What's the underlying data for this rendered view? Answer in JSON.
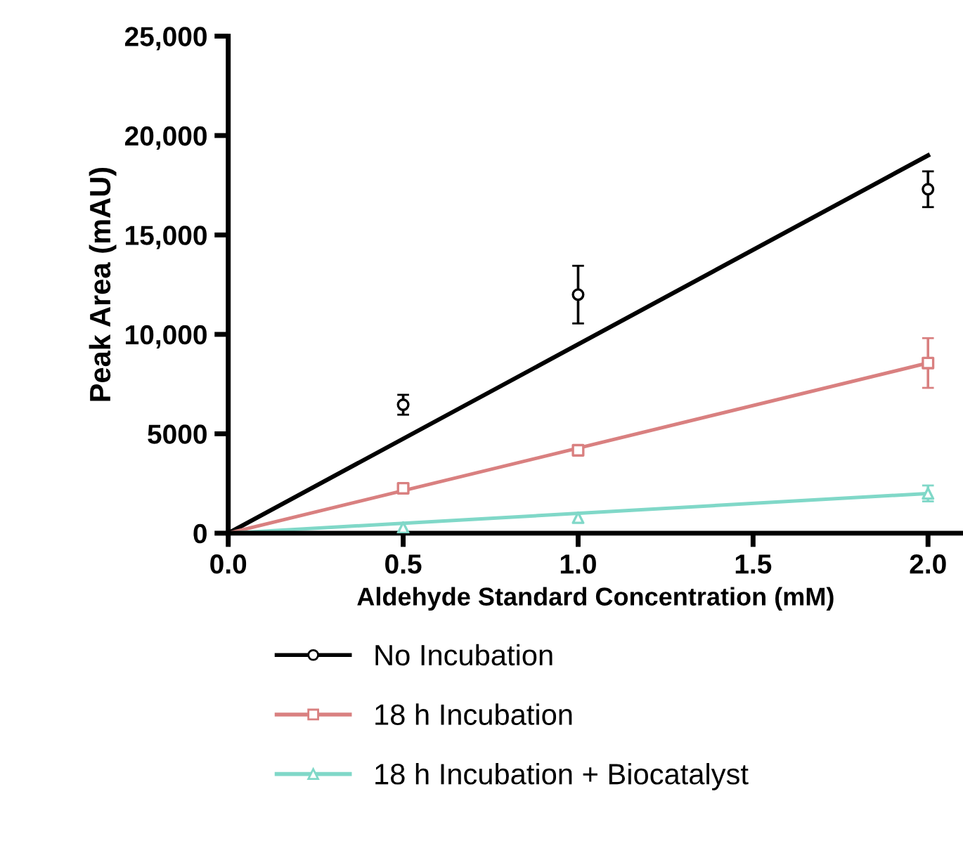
{
  "chart_data": {
    "type": "scatter",
    "xlabel": "Aldehyde Standard Concentration (mM)",
    "ylabel": "Peak Area (mAU)",
    "xlim": [
      0,
      2.1
    ],
    "ylim": [
      0,
      25000
    ],
    "xticks": [
      {
        "value": 0,
        "label": "0.0"
      },
      0.5,
      {
        "value": 1,
        "label": "1.0"
      },
      1.5,
      {
        "value": 2,
        "label": "2.0"
      }
    ],
    "yticks": [
      0,
      5000,
      {
        "value": 10000,
        "label": "10,000"
      },
      {
        "value": 15000,
        "label": "15,000"
      },
      {
        "value": 20000,
        "label": "20,000"
      },
      {
        "value": 25000,
        "label": "25,000"
      }
    ],
    "grid": false,
    "legend": "bottom",
    "series": [
      {
        "type": "line",
        "color": "#000000",
        "x": [
          0,
          2
        ],
        "values": [
          0,
          19000
        ],
        "marker": "none"
      },
      {
        "type": "line",
        "color": "#d98080",
        "x": [
          0,
          2
        ],
        "values": [
          0,
          8560
        ],
        "marker": "none"
      },
      {
        "type": "line",
        "color": "#80d8c8",
        "x": [
          0,
          2
        ],
        "values": [
          0,
          2000
        ],
        "marker": "none"
      },
      {
        "name": "No Incubation",
        "color": "#000000",
        "marker": "circle",
        "x": [
          0.5,
          1,
          2
        ],
        "values": [
          6460,
          12000,
          17300
        ],
        "errors": [
          500,
          1450,
          900
        ]
      },
      {
        "name": "18 h Incubation",
        "color": "#d98080",
        "marker": "square",
        "x": [
          0.5,
          1,
          2
        ],
        "values": [
          2260,
          4170,
          8560
        ],
        "errors": [
          null,
          null,
          1250
        ]
      },
      {
        "name": "18 h Incubation + Biocatalyst",
        "color": "#80d8c8",
        "marker": "triangle",
        "x": [
          0.5,
          1,
          2
        ],
        "values": [
          280,
          780,
          2000
        ],
        "errors": [
          null,
          null,
          400
        ]
      }
    ]
  }
}
